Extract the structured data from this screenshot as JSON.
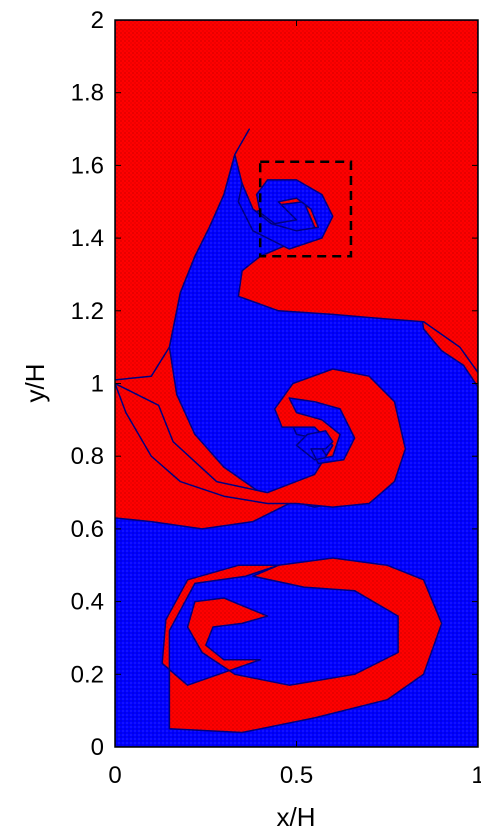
{
  "chart_data": {
    "type": "heatmap",
    "xlabel": "x/H",
    "ylabel": "y/H",
    "xlim": [
      0,
      1
    ],
    "ylim": [
      0,
      2
    ],
    "xticks": [
      0,
      0.5,
      1
    ],
    "xtick_labels": [
      "0",
      "0.5",
      "1"
    ],
    "yticks": [
      0,
      0.2,
      0.4,
      0.6,
      0.8,
      1,
      1.2,
      1.4,
      1.6,
      1.8,
      2
    ],
    "ytick_labels": [
      "0",
      "0.2",
      "0.4",
      "0.6",
      "0.8",
      "1",
      "1.2",
      "1.4",
      "1.6",
      "1.8",
      "2"
    ],
    "colors": {
      "fluid_a": "#ff0000",
      "fluid_b": "#0000ff",
      "interface": "#000080"
    },
    "regions": [
      {
        "fill": "#0000ff",
        "points": [
          [
            0,
            0
          ],
          [
            1,
            0
          ],
          [
            1,
            0.99
          ],
          [
            0.96,
            1.05
          ],
          [
            0.9,
            1.09
          ],
          [
            0.85,
            1.15
          ],
          [
            0.84,
            1.22
          ],
          [
            0.83,
            1.4
          ],
          [
            0.82,
            1.6
          ],
          [
            0.78,
            1.74
          ],
          [
            0.71,
            1.8
          ],
          [
            0.6,
            1.83
          ],
          [
            0.5,
            1.84
          ],
          [
            0.4,
            1.8
          ],
          [
            0.34,
            1.72
          ],
          [
            0.33,
            1.63
          ],
          [
            0.3,
            1.52
          ],
          [
            0.26,
            1.43
          ],
          [
            0.22,
            1.35
          ],
          [
            0.18,
            1.25
          ],
          [
            0.15,
            1.1
          ],
          [
            0.17,
            0.97
          ],
          [
            0.22,
            0.86
          ],
          [
            0.3,
            0.77
          ],
          [
            0.4,
            0.7
          ],
          [
            0.55,
            0.66
          ],
          [
            0.7,
            0.69
          ],
          [
            0.75,
            0.75
          ],
          [
            0.76,
            0.86
          ],
          [
            0.72,
            0.98
          ],
          [
            0.65,
            1.02
          ],
          [
            0.55,
            1.0
          ],
          [
            0.47,
            0.93
          ],
          [
            0.5,
            0.86
          ],
          [
            0.55,
            0.85
          ],
          [
            0.59,
            0.79
          ],
          [
            0.52,
            0.69
          ],
          [
            0.38,
            0.62
          ],
          [
            0.24,
            0.6
          ],
          [
            0.1,
            0.62
          ],
          [
            0.0,
            0.63
          ],
          [
            0,
            0
          ]
        ]
      },
      {
        "fill": "#ff0000",
        "points": [
          [
            0,
            1
          ],
          [
            0.03,
            0.92
          ],
          [
            0.1,
            0.8
          ],
          [
            0.18,
            0.73
          ],
          [
            0.3,
            0.69
          ],
          [
            0.42,
            0.67
          ],
          [
            0.5,
            0.67
          ],
          [
            0.6,
            0.66
          ],
          [
            0.7,
            0.67
          ],
          [
            0.77,
            0.73
          ],
          [
            0.8,
            0.82
          ],
          [
            0.77,
            0.95
          ],
          [
            0.7,
            1.02
          ],
          [
            0.6,
            1.04
          ],
          [
            0.49,
            1.0
          ],
          [
            0.44,
            0.93
          ],
          [
            0.46,
            0.88
          ],
          [
            0.55,
            0.88
          ],
          [
            0.6,
            0.83
          ],
          [
            0.55,
            0.75
          ],
          [
            0.42,
            0.7
          ],
          [
            0.28,
            0.73
          ],
          [
            0.16,
            0.84
          ],
          [
            0.12,
            0.94
          ],
          [
            0.0,
            1.0
          ]
        ]
      },
      {
        "fill": "#ff0000",
        "points": [
          [
            0.15,
            0.05
          ],
          [
            0.35,
            0.04
          ],
          [
            0.55,
            0.08
          ],
          [
            0.75,
            0.13
          ],
          [
            0.85,
            0.2
          ],
          [
            0.9,
            0.34
          ],
          [
            0.85,
            0.46
          ],
          [
            0.75,
            0.5
          ],
          [
            0.6,
            0.52
          ],
          [
            0.45,
            0.5
          ],
          [
            0.38,
            0.47
          ],
          [
            0.52,
            0.44
          ],
          [
            0.66,
            0.43
          ],
          [
            0.78,
            0.36
          ],
          [
            0.78,
            0.26
          ],
          [
            0.66,
            0.2
          ],
          [
            0.48,
            0.17
          ],
          [
            0.33,
            0.2
          ],
          [
            0.24,
            0.26
          ],
          [
            0.2,
            0.33
          ],
          [
            0.22,
            0.4
          ],
          [
            0.3,
            0.41
          ],
          [
            0.42,
            0.36
          ],
          [
            0.35,
            0.34
          ],
          [
            0.27,
            0.33
          ],
          [
            0.25,
            0.28
          ],
          [
            0.3,
            0.24
          ],
          [
            0.4,
            0.24
          ],
          [
            0.2,
            0.17
          ],
          [
            0.13,
            0.23
          ],
          [
            0.14,
            0.35
          ],
          [
            0.2,
            0.46
          ],
          [
            0.34,
            0.5
          ],
          [
            0.45,
            0.5
          ],
          [
            0.36,
            0.47
          ],
          [
            0.22,
            0.45
          ],
          [
            0.15,
            0.32
          ],
          [
            0.15,
            0.05
          ]
        ]
      },
      {
        "fill": "#ff0000",
        "points": [
          [
            0.4,
            1.35
          ],
          [
            0.35,
            1.31
          ],
          [
            0.34,
            1.24
          ],
          [
            0.45,
            1.2
          ],
          [
            0.6,
            1.19
          ],
          [
            0.72,
            1.18
          ],
          [
            0.85,
            1.17
          ],
          [
            0.95,
            1.1
          ],
          [
            1.0,
            1.03
          ],
          [
            1.0,
            2.0
          ],
          [
            0.3,
            2.0
          ],
          [
            0.0,
            2.0
          ],
          [
            0.0,
            1.01
          ],
          [
            0.1,
            1.02
          ],
          [
            0.15,
            1.1
          ],
          [
            0.18,
            1.25
          ],
          [
            0.22,
            1.35
          ],
          [
            0.26,
            1.43
          ],
          [
            0.3,
            1.52
          ],
          [
            0.33,
            1.63
          ],
          [
            0.37,
            1.7
          ],
          [
            0.33,
            1.63
          ],
          [
            0.35,
            1.55
          ],
          [
            0.38,
            1.47
          ],
          [
            0.44,
            1.49
          ],
          [
            0.52,
            1.5
          ],
          [
            0.55,
            1.43
          ],
          [
            0.52,
            1.4
          ],
          [
            0.47,
            1.38
          ],
          [
            0.4,
            1.35
          ]
        ]
      }
    ],
    "spirals": [
      {
        "fill": "#0000ff",
        "points": [
          [
            0.35,
            1.55
          ],
          [
            0.38,
            1.48
          ],
          [
            0.43,
            1.44
          ],
          [
            0.5,
            1.42
          ],
          [
            0.56,
            1.43
          ],
          [
            0.54,
            1.48
          ],
          [
            0.5,
            1.51
          ],
          [
            0.45,
            1.5
          ],
          [
            0.48,
            1.47
          ],
          [
            0.5,
            1.45
          ],
          [
            0.44,
            1.44
          ],
          [
            0.4,
            1.47
          ],
          [
            0.39,
            1.52
          ],
          [
            0.42,
            1.56
          ],
          [
            0.5,
            1.56
          ],
          [
            0.57,
            1.52
          ],
          [
            0.6,
            1.46
          ],
          [
            0.57,
            1.4
          ],
          [
            0.48,
            1.37
          ],
          [
            0.38,
            1.42
          ],
          [
            0.34,
            1.5
          ]
        ]
      },
      {
        "fill": "#0000ff",
        "points": [
          [
            0.48,
            0.96
          ],
          [
            0.5,
            0.92
          ],
          [
            0.57,
            0.9
          ],
          [
            0.62,
            0.86
          ],
          [
            0.6,
            0.8
          ],
          [
            0.55,
            0.79
          ],
          [
            0.5,
            0.83
          ],
          [
            0.53,
            0.86
          ],
          [
            0.58,
            0.87
          ],
          [
            0.6,
            0.84
          ],
          [
            0.58,
            0.82
          ],
          [
            0.54,
            0.82
          ],
          [
            0.56,
            0.78
          ],
          [
            0.63,
            0.79
          ],
          [
            0.66,
            0.85
          ],
          [
            0.62,
            0.93
          ],
          [
            0.55,
            0.95
          ]
        ]
      }
    ],
    "annotation_box": {
      "x0": 0.4,
      "x1": 0.65,
      "y0": 1.35,
      "y1": 1.61,
      "style": "dashed",
      "color": "#000000"
    },
    "grid": false,
    "legend": "none"
  }
}
